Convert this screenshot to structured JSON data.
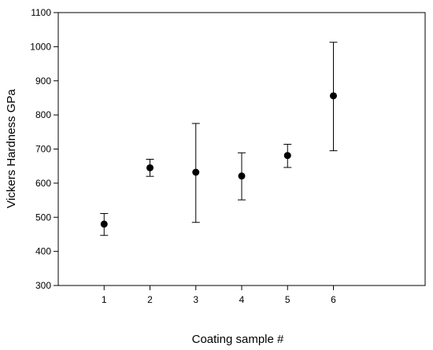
{
  "chart_data": {
    "type": "scatter",
    "title": "",
    "xlabel": "Coating sample #",
    "ylabel": "Vickers Hardness GPa",
    "xlim": [
      0,
      8
    ],
    "ylim": [
      300,
      1100
    ],
    "x_ticks": [
      1,
      2,
      3,
      4,
      5,
      6
    ],
    "y_ticks": [
      300,
      400,
      500,
      600,
      700,
      800,
      900,
      1000,
      1100
    ],
    "grid": false,
    "series": [
      {
        "points": [
          {
            "x": 1,
            "y": 480,
            "y_low": 447,
            "y_high": 511
          },
          {
            "x": 2,
            "y": 645,
            "y_low": 620,
            "y_high": 670
          },
          {
            "x": 3,
            "y": 632,
            "y_low": 485,
            "y_high": 775
          },
          {
            "x": 4,
            "y": 621,
            "y_low": 551,
            "y_high": 689
          },
          {
            "x": 5,
            "y": 681,
            "y_low": 646,
            "y_high": 714
          },
          {
            "x": 6,
            "y": 856,
            "y_low": 695,
            "y_high": 1013
          }
        ],
        "color": "#000000",
        "marker": "filled-circle",
        "error_bars": true
      }
    ]
  }
}
